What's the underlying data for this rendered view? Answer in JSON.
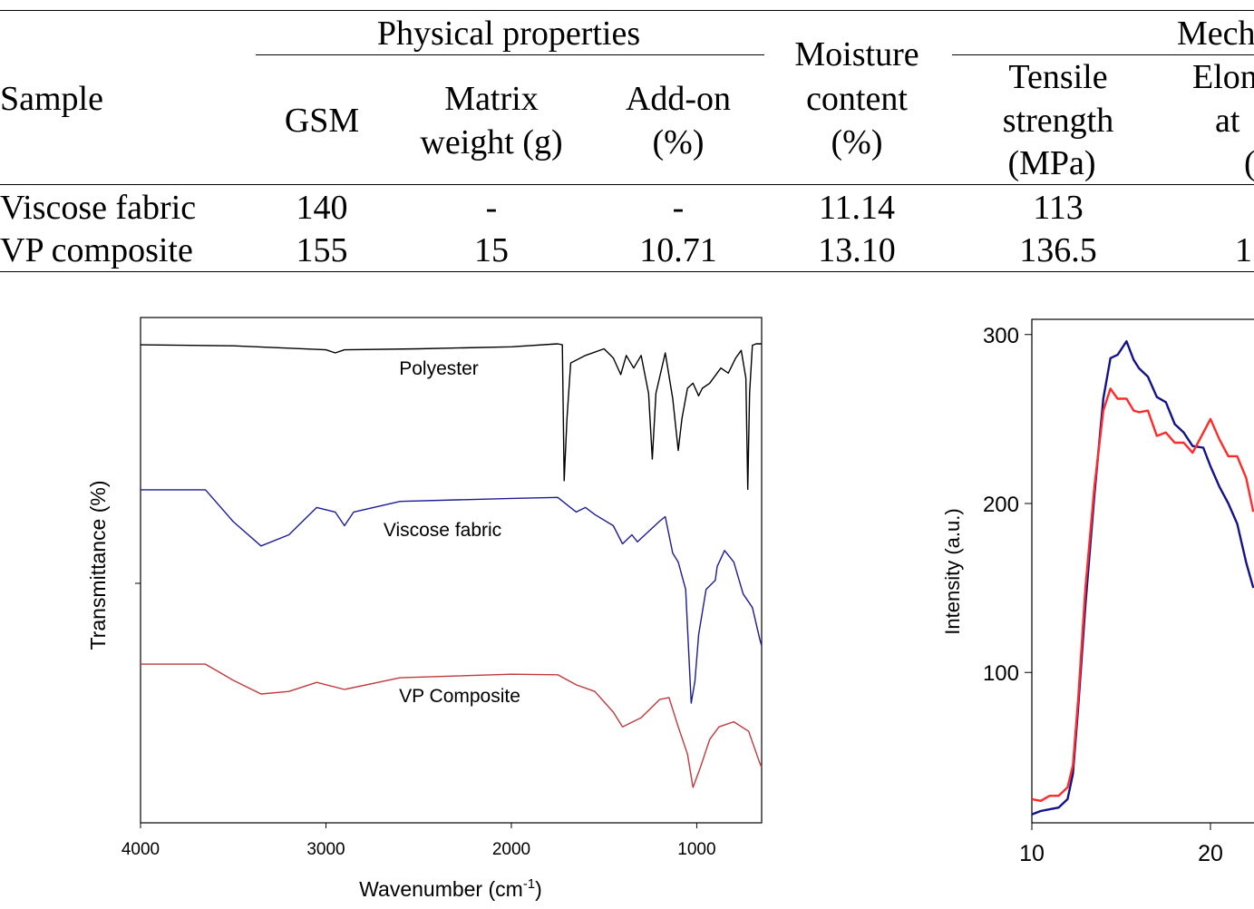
{
  "table": {
    "group_headers": {
      "physical": "Physical properties",
      "mechanical": "Mech"
    },
    "headers": {
      "sample": "Sample",
      "gsm": "GSM",
      "matrix_weight": [
        "Matrix",
        "weight (g)"
      ],
      "add_on": [
        "Add-on",
        "(%)"
      ],
      "moisture": [
        "Moisture",
        "content",
        "(%)"
      ],
      "tensile": [
        "Tensile",
        "strength",
        "(MPa)"
      ],
      "elongation": [
        "Elon",
        "at",
        "("
      ]
    },
    "rows": [
      {
        "sample": "Viscose fabric",
        "gsm": "140",
        "matrix_weight": "-",
        "add_on": "-",
        "moisture": "11.14",
        "tensile": "113",
        "elongation": ""
      },
      {
        "sample": "VP composite",
        "gsm": "155",
        "matrix_weight": "15",
        "add_on": "10.71",
        "moisture": "13.10",
        "tensile": "136.5",
        "elongation": "1"
      }
    ]
  },
  "chart_data": [
    {
      "type": "line",
      "title": "",
      "xlabel": "Wavenumber (cm",
      "xlabel_sup": "-1",
      "xlabel_end": ")",
      "ylabel": "Transmittance (%)",
      "xlim": [
        4000,
        650
      ],
      "x_reversed": true,
      "ylim": [
        0,
        100
      ],
      "y_units": "arbitrary (no tick labels printed)",
      "xticks": [
        "4000",
        "3000",
        "2000",
        "1000"
      ],
      "xtick_values": [
        4000,
        3000,
        2000,
        1000
      ],
      "grid": false,
      "series": [
        {
          "name": "Polyester",
          "color": "#000000",
          "x": [
            4000,
            3500,
            3000,
            2950,
            2900,
            2500,
            2000,
            1750,
            1725,
            1715,
            1700,
            1680,
            1600,
            1500,
            1450,
            1410,
            1380,
            1340,
            1300,
            1260,
            1240,
            1220,
            1170,
            1130,
            1100,
            1080,
            1050,
            1020,
            990,
            970,
            930,
            870,
            830,
            790,
            760,
            735,
            725,
            715,
            700,
            680,
            650
          ],
          "y": [
            94.6,
            94.4,
            93.6,
            93.0,
            93.6,
            93.8,
            94.2,
            94.8,
            94.6,
            67.7,
            80,
            91,
            92.5,
            93.8,
            92,
            88.7,
            92.5,
            90,
            92.5,
            85,
            72,
            85,
            93,
            84,
            73.7,
            80,
            86,
            87,
            84.5,
            86,
            87,
            90,
            89,
            92,
            93.5,
            88,
            66,
            85,
            94.5,
            94.8,
            94.8
          ]
        },
        {
          "name": "Viscose fabric",
          "color": "#1c1c96",
          "x": [
            4000,
            3650,
            3500,
            3350,
            3200,
            3050,
            2950,
            2900,
            2850,
            2600,
            2000,
            1750,
            1650,
            1600,
            1550,
            1450,
            1400,
            1350,
            1320,
            1200,
            1170,
            1130,
            1100,
            1060,
            1030,
            1010,
            990,
            950,
            900,
            890,
            850,
            800,
            750,
            700,
            660,
            650
          ],
          "y": [
            65.9,
            65.9,
            59.6,
            54.8,
            57,
            62.4,
            61.5,
            58.8,
            61.5,
            63.6,
            64.2,
            64.4,
            61.5,
            62.4,
            61,
            58.8,
            55.2,
            57,
            55.6,
            59.7,
            60.6,
            53.4,
            51.6,
            46.2,
            23.7,
            28,
            37.2,
            46.2,
            48,
            50.7,
            53.9,
            51.6,
            45.3,
            42.6,
            36.3,
            35
          ]
        },
        {
          "name": "VP Composite",
          "color": "#c0393b",
          "x": [
            4000,
            3650,
            3500,
            3350,
            3200,
            3050,
            2900,
            2600,
            2000,
            1750,
            1650,
            1550,
            1450,
            1400,
            1300,
            1200,
            1150,
            1100,
            1050,
            1020,
            980,
            930,
            880,
            800,
            720,
            660,
            650
          ],
          "y": [
            31.4,
            31.4,
            28.2,
            25.5,
            26,
            27.8,
            26.4,
            28.7,
            29.4,
            29.3,
            27.3,
            26,
            21.9,
            19.0,
            20.8,
            24.4,
            24.8,
            19,
            13.6,
            7,
            11,
            16.5,
            19,
            20,
            18.1,
            11.8,
            11
          ]
        }
      ],
      "annotations": [
        "Polyester",
        "Viscose fabric",
        "VP Composite"
      ]
    },
    {
      "type": "line",
      "title": "",
      "xlabel": "",
      "ylabel": "Intensity (a.u.)",
      "xlim": [
        10,
        22.4
      ],
      "ylim": [
        11,
        309
      ],
      "xticks": [
        "10",
        "20"
      ],
      "xtick_values": [
        10,
        20
      ],
      "yticks": [
        "100",
        "200",
        "300"
      ],
      "ytick_values": [
        100,
        200,
        300
      ],
      "grid": false,
      "series": [
        {
          "color": "#12128a",
          "x": [
            10,
            10.5,
            11,
            11.5,
            12,
            12.3,
            12.6,
            13,
            13.5,
            14,
            14.4,
            14.8,
            15.3,
            15.7,
            16,
            16.5,
            17,
            17.5,
            18,
            18.5,
            19,
            19.6,
            20,
            20.5,
            21,
            21.5,
            22,
            22.4
          ],
          "y": [
            16,
            18,
            19,
            20,
            25,
            40,
            80,
            140,
            205,
            262,
            286,
            288,
            296,
            285,
            280,
            275,
            263,
            260,
            247,
            242,
            234,
            233,
            222,
            210,
            200,
            188,
            165,
            150
          ]
        },
        {
          "color": "#ff2a2a",
          "x": [
            10,
            10.5,
            11,
            11.5,
            12,
            12.3,
            12.6,
            13,
            13.5,
            14,
            14.4,
            14.8,
            15.3,
            15.7,
            16,
            16.5,
            17,
            17.5,
            18,
            18.5,
            19,
            19.5,
            20,
            20.5,
            21,
            21.5,
            22,
            22.4
          ],
          "y": [
            25,
            24,
            27,
            27,
            32,
            45,
            85,
            150,
            210,
            255,
            268,
            262,
            262,
            255,
            254,
            255,
            240,
            242,
            236,
            236,
            230,
            240,
            250,
            238,
            228,
            228,
            215,
            195
          ]
        }
      ]
    }
  ]
}
